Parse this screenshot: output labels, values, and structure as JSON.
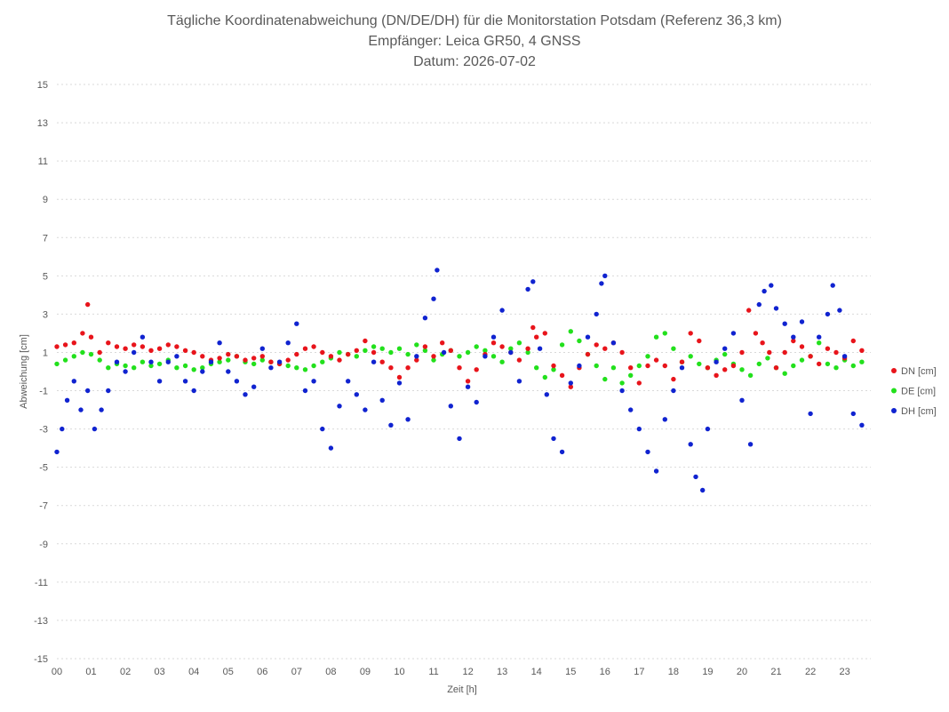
{
  "chart_data": {
    "type": "scatter",
    "title_lines": [
      "Tägliche Koordinatenabweichung (DN/DE/DH) für die Monitorstation Potsdam (Referenz 36,3 km)",
      "Empfänger: Leica GR50, 4 GNSS",
      "Datum: 2026-07-02"
    ],
    "xlabel": "Zeit [h]",
    "ylabel": "Abweichung [cm]",
    "ylim": [
      -15,
      15
    ],
    "xlim": [
      0,
      23.6
    ],
    "y_ticks": [
      15,
      13,
      11,
      9,
      7,
      5,
      3,
      1,
      -1,
      -3,
      -5,
      -7,
      -9,
      -11,
      -13,
      -15
    ],
    "x_tick_labels": [
      "00",
      "01",
      "02",
      "03",
      "04",
      "05",
      "06",
      "07",
      "08",
      "09",
      "10",
      "11",
      "12",
      "13",
      "14",
      "15",
      "16",
      "17",
      "18",
      "19",
      "20",
      "21",
      "22",
      "23"
    ],
    "grid": "horizontal dotted",
    "legend_position": "right",
    "series": [
      {
        "name": "DN [cm]",
        "color": "#e8141b",
        "x": [
          0.0,
          0.25,
          0.5,
          0.75,
          0.9,
          1.0,
          1.25,
          1.5,
          1.75,
          2.0,
          2.25,
          2.5,
          2.75,
          3.0,
          3.25,
          3.5,
          3.75,
          4.0,
          4.25,
          4.5,
          4.75,
          5.0,
          5.25,
          5.5,
          5.75,
          6.0,
          6.25,
          6.5,
          6.75,
          7.0,
          7.25,
          7.5,
          7.75,
          8.0,
          8.25,
          8.5,
          8.75,
          9.0,
          9.25,
          9.5,
          9.75,
          10.0,
          10.25,
          10.5,
          10.75,
          11.0,
          11.25,
          11.5,
          11.75,
          12.0,
          12.25,
          12.5,
          12.75,
          13.0,
          13.25,
          13.5,
          13.75,
          13.9,
          14.0,
          14.25,
          14.5,
          14.75,
          15.0,
          15.25,
          15.5,
          15.75,
          16.0,
          16.25,
          16.5,
          16.75,
          17.0,
          17.25,
          17.5,
          17.75,
          18.0,
          18.25,
          18.5,
          18.75,
          19.0,
          19.25,
          19.5,
          19.75,
          20.0,
          20.2,
          20.4,
          20.6,
          20.8,
          21.0,
          21.25,
          21.5,
          21.75,
          22.0,
          22.25,
          22.5,
          22.75,
          23.0,
          23.25,
          23.5
        ],
        "y": [
          1.3,
          1.4,
          1.5,
          2.0,
          3.5,
          1.8,
          1.0,
          1.5,
          1.3,
          1.2,
          1.4,
          1.3,
          1.1,
          1.2,
          1.4,
          1.3,
          1.1,
          1.0,
          0.8,
          0.6,
          0.7,
          0.9,
          0.8,
          0.6,
          0.7,
          0.8,
          0.5,
          0.4,
          0.6,
          0.9,
          1.2,
          1.3,
          1.0,
          0.8,
          0.6,
          0.9,
          1.1,
          1.6,
          1.0,
          0.5,
          0.2,
          -0.3,
          0.2,
          0.6,
          1.3,
          0.8,
          1.5,
          1.1,
          0.2,
          -0.5,
          0.1,
          0.9,
          1.5,
          1.3,
          1.0,
          0.6,
          1.2,
          2.3,
          1.8,
          2.0,
          0.3,
          -0.2,
          -0.8,
          0.2,
          0.9,
          1.4,
          1.2,
          1.5,
          1.0,
          0.2,
          -0.6,
          0.3,
          0.6,
          0.3,
          -0.4,
          0.5,
          2.0,
          1.6,
          0.2,
          -0.2,
          0.1,
          0.3,
          1.0,
          3.2,
          2.0,
          1.5,
          1.0,
          0.2,
          1.0,
          1.6,
          1.3,
          0.8,
          0.4,
          1.2,
          1.0,
          0.7,
          1.6,
          1.1
        ]
      },
      {
        "name": "DE [cm]",
        "color": "#22e01c",
        "x": [
          0.0,
          0.25,
          0.5,
          0.75,
          1.0,
          1.25,
          1.5,
          1.75,
          2.0,
          2.25,
          2.5,
          2.75,
          3.0,
          3.25,
          3.5,
          3.75,
          4.0,
          4.25,
          4.5,
          4.75,
          5.0,
          5.25,
          5.5,
          5.75,
          6.0,
          6.25,
          6.5,
          6.75,
          7.0,
          7.25,
          7.5,
          7.75,
          8.0,
          8.25,
          8.5,
          8.75,
          9.0,
          9.25,
          9.5,
          9.75,
          10.0,
          10.25,
          10.5,
          10.75,
          11.0,
          11.25,
          11.5,
          11.75,
          12.0,
          12.25,
          12.5,
          12.75,
          13.0,
          13.25,
          13.5,
          13.75,
          14.0,
          14.25,
          14.5,
          14.75,
          15.0,
          15.25,
          15.5,
          15.75,
          16.0,
          16.25,
          16.5,
          16.75,
          17.0,
          17.25,
          17.5,
          17.75,
          18.0,
          18.25,
          18.5,
          18.75,
          19.0,
          19.25,
          19.5,
          19.75,
          20.0,
          20.25,
          20.5,
          20.75,
          21.0,
          21.25,
          21.5,
          21.75,
          22.0,
          22.25,
          22.5,
          22.75,
          23.0,
          23.25,
          23.5
        ],
        "y": [
          0.4,
          0.6,
          0.8,
          1.0,
          0.9,
          0.6,
          0.2,
          0.4,
          0.3,
          0.2,
          0.5,
          0.3,
          0.4,
          0.6,
          0.2,
          0.3,
          0.1,
          0.2,
          0.4,
          0.5,
          0.6,
          0.8,
          0.5,
          0.4,
          0.6,
          0.5,
          0.4,
          0.3,
          0.2,
          0.1,
          0.3,
          0.5,
          0.7,
          1.0,
          0.9,
          0.8,
          1.1,
          1.3,
          1.2,
          1.0,
          1.2,
          0.9,
          1.4,
          1.1,
          0.6,
          0.9,
          1.1,
          0.8,
          1.0,
          1.3,
          1.1,
          0.8,
          0.5,
          1.2,
          1.5,
          1.0,
          0.2,
          -0.3,
          0.1,
          1.4,
          2.1,
          1.6,
          0.9,
          0.3,
          -0.4,
          0.2,
          -0.6,
          -0.2,
          0.3,
          0.8,
          1.8,
          2.0,
          1.2,
          0.5,
          0.8,
          0.4,
          0.2,
          0.6,
          0.9,
          0.4,
          0.1,
          -0.2,
          0.4,
          0.7,
          0.2,
          -0.1,
          0.3,
          0.6,
          0.8,
          1.5,
          0.4,
          0.2,
          0.6,
          0.3,
          0.5
        ]
      },
      {
        "name": "DH [cm]",
        "color": "#1023d0",
        "x": [
          0.0,
          0.15,
          0.3,
          0.5,
          0.7,
          0.9,
          1.1,
          1.3,
          1.5,
          1.75,
          2.0,
          2.25,
          2.5,
          2.75,
          3.0,
          3.25,
          3.5,
          3.75,
          4.0,
          4.25,
          4.5,
          4.75,
          5.0,
          5.25,
          5.5,
          5.75,
          6.0,
          6.25,
          6.5,
          6.75,
          7.0,
          7.25,
          7.5,
          7.75,
          8.0,
          8.25,
          8.5,
          8.75,
          9.0,
          9.25,
          9.5,
          9.75,
          10.0,
          10.25,
          10.5,
          10.75,
          11.0,
          11.1,
          11.3,
          11.5,
          11.75,
          12.0,
          12.25,
          12.5,
          12.75,
          13.0,
          13.25,
          13.5,
          13.75,
          13.9,
          14.1,
          14.3,
          14.5,
          14.75,
          15.0,
          15.25,
          15.5,
          15.75,
          15.9,
          16.0,
          16.25,
          16.5,
          16.75,
          17.0,
          17.25,
          17.5,
          17.75,
          18.0,
          18.25,
          18.5,
          18.65,
          18.85,
          19.0,
          19.25,
          19.5,
          19.75,
          20.0,
          20.25,
          20.5,
          20.65,
          20.85,
          21.0,
          21.25,
          21.5,
          21.75,
          22.0,
          22.25,
          22.5,
          22.65,
          22.85,
          23.0,
          23.25,
          23.5
        ],
        "y": [
          -4.2,
          -3.0,
          -1.5,
          -0.5,
          -2.0,
          -1.0,
          -3.0,
          -2.0,
          -1.0,
          0.5,
          0.0,
          1.0,
          1.8,
          0.5,
          -0.5,
          0.5,
          0.8,
          -0.5,
          -1.0,
          0.0,
          0.5,
          1.5,
          0.0,
          -0.5,
          -1.2,
          -0.8,
          1.2,
          0.2,
          0.5,
          1.5,
          2.5,
          -1.0,
          -0.5,
          -3.0,
          -4.0,
          -1.8,
          -0.5,
          -1.2,
          -2.0,
          0.5,
          -1.5,
          -2.8,
          -0.6,
          -2.5,
          0.8,
          2.8,
          3.8,
          5.3,
          1.0,
          -1.8,
          -3.5,
          -0.8,
          -1.6,
          0.8,
          1.8,
          3.2,
          1.0,
          -0.5,
          4.3,
          4.7,
          1.2,
          -1.2,
          -3.5,
          -4.2,
          -0.6,
          0.3,
          1.8,
          3.0,
          4.6,
          5.0,
          1.5,
          -1.0,
          -2.0,
          -3.0,
          -4.2,
          -5.2,
          -2.5,
          -1.0,
          0.2,
          -3.8,
          -5.5,
          -6.2,
          -3.0,
          0.5,
          1.2,
          2.0,
          -1.5,
          -3.8,
          3.5,
          4.2,
          4.5,
          3.3,
          2.5,
          1.8,
          2.6,
          -2.2,
          1.8,
          3.0,
          4.5,
          3.2,
          0.8,
          -2.2,
          -2.8
        ]
      }
    ]
  }
}
